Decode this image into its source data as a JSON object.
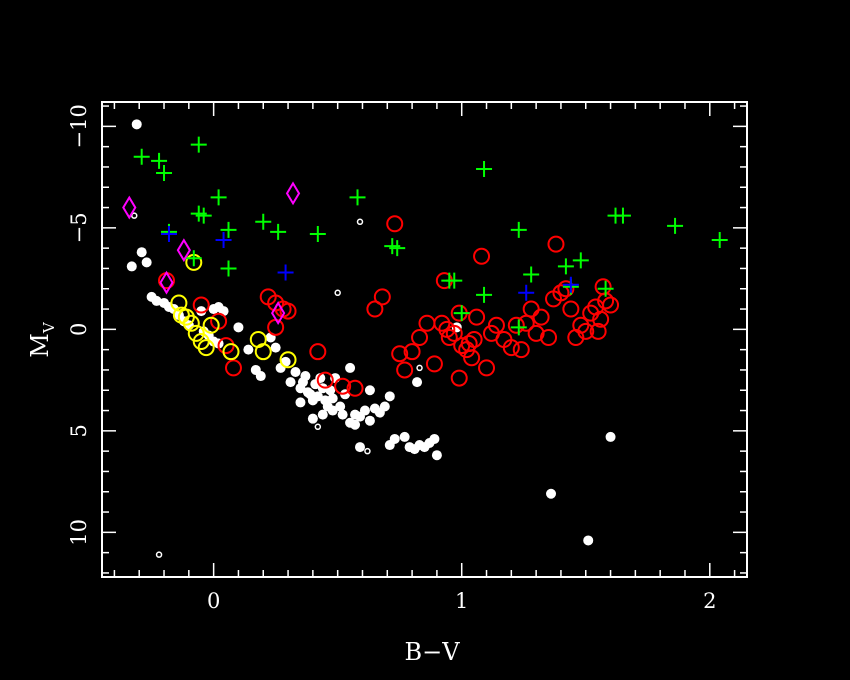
{
  "chart_data": {
    "type": "scatter",
    "title": "",
    "xlabel": "B−V",
    "ylabel": "M",
    "ylabel_sub": "V",
    "xlim": [
      -0.45,
      2.15
    ],
    "ylim": [
      12.2,
      -11.2
    ],
    "y_inverted": true,
    "x_ticks": [
      {
        "value": 0,
        "label": "0"
      },
      {
        "value": 1,
        "label": "1"
      },
      {
        "value": 2,
        "label": "2"
      }
    ],
    "y_ticks": [
      {
        "value": -10,
        "label": "−10"
      },
      {
        "value": -5,
        "label": "−5"
      },
      {
        "value": 0,
        "label": "0"
      },
      {
        "value": 5,
        "label": "5"
      },
      {
        "value": 10,
        "label": "10"
      }
    ],
    "colors": {
      "white": "#ffffff",
      "red": "#ff0000",
      "yellow": "#ffff00",
      "green": "#00ff00",
      "blue": "#0000ff",
      "magenta": "#ff00ff"
    },
    "series": [
      {
        "marker": "filled-circle",
        "color": "white",
        "points": [
          [
            -0.31,
            -10.1
          ],
          [
            -0.29,
            -3.8
          ],
          [
            -0.27,
            -3.3
          ],
          [
            -0.33,
            -3.1
          ],
          [
            -0.25,
            -1.6
          ],
          [
            -0.23,
            -1.4
          ],
          [
            -0.2,
            -1.3
          ],
          [
            -0.18,
            -1.1
          ],
          [
            -0.16,
            -1.0
          ],
          [
            -0.14,
            -0.7
          ],
          [
            -0.12,
            -0.4
          ],
          [
            -0.1,
            -0.2
          ],
          [
            -0.04,
            0.1
          ],
          [
            -0.02,
            0.3
          ],
          [
            0.0,
            0.6
          ],
          [
            0.02,
            0.7
          ],
          [
            0.0,
            -1.0
          ],
          [
            0.02,
            -1.1
          ],
          [
            -0.05,
            -0.9
          ],
          [
            0.04,
            -0.9
          ],
          [
            0.1,
            -0.1
          ],
          [
            0.14,
            1.0
          ],
          [
            0.17,
            2.0
          ],
          [
            0.19,
            2.3
          ],
          [
            0.23,
            0.4
          ],
          [
            0.25,
            0.9
          ],
          [
            0.27,
            1.9
          ],
          [
            0.29,
            1.6
          ],
          [
            0.31,
            2.6
          ],
          [
            0.33,
            2.1
          ],
          [
            0.35,
            2.9
          ],
          [
            0.37,
            2.3
          ],
          [
            0.39,
            3.2
          ],
          [
            0.41,
            2.7
          ],
          [
            0.43,
            2.4
          ],
          [
            0.45,
            3.5
          ],
          [
            0.47,
            3.0
          ],
          [
            0.49,
            2.4
          ],
          [
            0.51,
            3.8
          ],
          [
            0.53,
            3.2
          ],
          [
            0.35,
            3.6
          ],
          [
            0.38,
            3.1
          ],
          [
            0.4,
            3.5
          ],
          [
            0.42,
            3.3
          ],
          [
            0.44,
            2.9
          ],
          [
            0.46,
            3.8
          ],
          [
            0.48,
            3.4
          ],
          [
            0.36,
            2.6
          ],
          [
            0.4,
            4.4
          ],
          [
            0.44,
            4.2
          ],
          [
            0.48,
            4.0
          ],
          [
            0.52,
            4.2
          ],
          [
            0.55,
            1.9
          ],
          [
            0.55,
            4.6
          ],
          [
            0.57,
            4.2
          ],
          [
            0.59,
            4.3
          ],
          [
            0.61,
            4.0
          ],
          [
            0.63,
            4.5
          ],
          [
            0.65,
            3.9
          ],
          [
            0.67,
            4.1
          ],
          [
            0.69,
            3.8
          ],
          [
            0.71,
            3.3
          ],
          [
            0.63,
            3.0
          ],
          [
            0.57,
            4.7
          ],
          [
            0.59,
            5.8
          ],
          [
            0.71,
            5.7
          ],
          [
            0.73,
            5.4
          ],
          [
            0.77,
            5.3
          ],
          [
            0.79,
            5.8
          ],
          [
            0.81,
            5.9
          ],
          [
            0.83,
            5.7
          ],
          [
            0.85,
            5.8
          ],
          [
            0.87,
            5.6
          ],
          [
            0.89,
            5.4
          ],
          [
            0.82,
            2.6
          ],
          [
            0.9,
            6.2
          ],
          [
            0.98,
            -0.1
          ],
          [
            1.36,
            8.1
          ],
          [
            1.51,
            10.4
          ],
          [
            1.6,
            5.3
          ]
        ]
      },
      {
        "marker": "small-open-circle",
        "color": "white",
        "points": [
          [
            -0.32,
            -5.6
          ],
          [
            -0.22,
            11.1
          ],
          [
            0.42,
            4.8
          ],
          [
            0.5,
            -1.8
          ],
          [
            0.59,
            -5.3
          ],
          [
            0.62,
            6.0
          ],
          [
            0.83,
            1.9
          ]
        ]
      },
      {
        "marker": "open-circle",
        "color": "red",
        "points": [
          [
            -0.19,
            -2.4
          ],
          [
            -0.05,
            -1.2
          ],
          [
            0.02,
            -0.4
          ],
          [
            0.05,
            0.8
          ],
          [
            0.08,
            1.9
          ],
          [
            0.22,
            -1.6
          ],
          [
            0.25,
            -1.3
          ],
          [
            0.28,
            -1.0
          ],
          [
            0.25,
            -0.1
          ],
          [
            0.3,
            -0.9
          ],
          [
            0.42,
            1.1
          ],
          [
            0.52,
            2.8
          ],
          [
            0.65,
            -1.0
          ],
          [
            0.68,
            -1.6
          ],
          [
            0.73,
            -5.2
          ],
          [
            0.75,
            1.2
          ],
          [
            0.77,
            2.0
          ],
          [
            0.8,
            1.1
          ],
          [
            0.83,
            0.4
          ],
          [
            0.86,
            -0.3
          ],
          [
            0.89,
            1.7
          ],
          [
            0.92,
            -0.3
          ],
          [
            0.94,
            0.0
          ],
          [
            0.95,
            0.4
          ],
          [
            0.97,
            0.2
          ],
          [
            0.99,
            -0.8
          ],
          [
            1.0,
            0.8
          ],
          [
            1.02,
            1.0
          ],
          [
            1.05,
            0.5
          ],
          [
            0.99,
            2.4
          ],
          [
            1.03,
            0.7
          ],
          [
            1.04,
            1.4
          ],
          [
            1.06,
            -0.6
          ],
          [
            1.08,
            -3.6
          ],
          [
            1.1,
            1.9
          ],
          [
            1.12,
            0.2
          ],
          [
            1.14,
            -0.2
          ],
          [
            1.17,
            0.5
          ],
          [
            1.2,
            0.9
          ],
          [
            1.22,
            -0.2
          ],
          [
            1.24,
            1.0
          ],
          [
            1.26,
            -0.3
          ],
          [
            1.28,
            -1.0
          ],
          [
            1.3,
            0.2
          ],
          [
            1.32,
            -0.6
          ],
          [
            1.35,
            0.4
          ],
          [
            1.37,
            -1.5
          ],
          [
            1.4,
            -1.8
          ],
          [
            1.42,
            -2.0
          ],
          [
            1.44,
            -1.0
          ],
          [
            1.46,
            0.4
          ],
          [
            1.48,
            -0.2
          ],
          [
            1.5,
            0.1
          ],
          [
            1.52,
            -0.8
          ],
          [
            1.54,
            -1.1
          ],
          [
            1.56,
            -0.5
          ],
          [
            1.58,
            -1.4
          ],
          [
            1.6,
            -1.2
          ],
          [
            1.57,
            -2.1
          ],
          [
            1.55,
            0.1
          ],
          [
            0.93,
            -2.4
          ],
          [
            1.38,
            -4.2
          ],
          [
            0.57,
            2.9
          ],
          [
            0.45,
            2.5
          ]
        ]
      },
      {
        "marker": "open-circle",
        "color": "yellow",
        "points": [
          [
            -0.14,
            -1.3
          ],
          [
            -0.13,
            -0.7
          ],
          [
            -0.11,
            -0.6
          ],
          [
            -0.09,
            -0.3
          ],
          [
            -0.07,
            0.2
          ],
          [
            -0.05,
            0.6
          ],
          [
            -0.03,
            0.9
          ],
          [
            -0.01,
            -0.2
          ],
          [
            0.07,
            1.1
          ],
          [
            0.18,
            0.5
          ],
          [
            0.2,
            1.1
          ],
          [
            0.3,
            1.5
          ],
          [
            -0.08,
            -3.3
          ]
        ]
      },
      {
        "marker": "plus",
        "color": "green",
        "points": [
          [
            -0.29,
            -8.5
          ],
          [
            -0.22,
            -8.3
          ],
          [
            -0.2,
            -7.7
          ],
          [
            -0.18,
            -4.8
          ],
          [
            -0.06,
            -9.1
          ],
          [
            -0.06,
            -5.7
          ],
          [
            -0.04,
            -5.6
          ],
          [
            0.02,
            -6.5
          ],
          [
            0.06,
            -4.9
          ],
          [
            0.06,
            -3.0
          ],
          [
            0.2,
            -5.3
          ],
          [
            0.26,
            -4.8
          ],
          [
            0.42,
            -4.7
          ],
          [
            0.58,
            -6.5
          ],
          [
            0.72,
            -4.1
          ],
          [
            0.74,
            -4.0
          ],
          [
            0.95,
            -2.4
          ],
          [
            0.97,
            -2.4
          ],
          [
            1.0,
            -0.8
          ],
          [
            1.09,
            -7.9
          ],
          [
            1.09,
            -1.7
          ],
          [
            1.23,
            -4.9
          ],
          [
            1.23,
            -0.1
          ],
          [
            1.28,
            -2.7
          ],
          [
            1.42,
            -3.1
          ],
          [
            1.44,
            -2.1
          ],
          [
            1.48,
            -3.4
          ],
          [
            1.58,
            -2.0
          ],
          [
            1.62,
            -5.6
          ],
          [
            1.65,
            -5.6
          ],
          [
            1.86,
            -5.1
          ],
          [
            2.04,
            -4.4
          ],
          [
            -0.08,
            -3.5
          ]
        ]
      },
      {
        "marker": "plus",
        "color": "blue",
        "points": [
          [
            -0.18,
            -4.7
          ],
          [
            0.04,
            -4.4
          ],
          [
            0.29,
            -2.8
          ],
          [
            1.26,
            -1.8
          ],
          [
            1.44,
            -2.2
          ]
        ]
      },
      {
        "marker": "open-diamond",
        "color": "magenta",
        "points": [
          [
            -0.34,
            -6.0
          ],
          [
            -0.19,
            -2.3
          ],
          [
            -0.12,
            -3.9
          ],
          [
            0.26,
            -0.8
          ],
          [
            0.32,
            -6.7
          ]
        ]
      }
    ]
  }
}
